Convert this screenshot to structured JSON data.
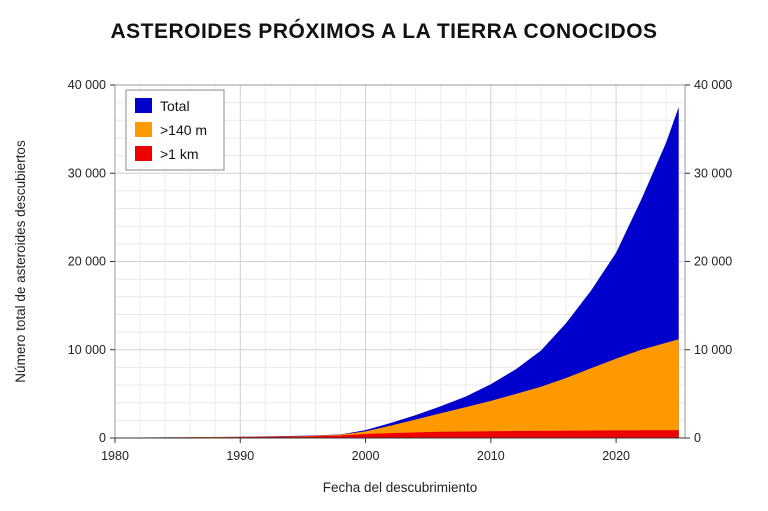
{
  "chart_data": {
    "type": "area",
    "title": "ASTEROIDES PRÓXIMOS A LA TIERRA CONOCIDOS",
    "xlabel": "Fecha del descubrimiento",
    "ylabel": "Número total de asteroides descubiertos",
    "xlim": [
      1980,
      2025.5
    ],
    "ylim": [
      0,
      40000
    ],
    "x_ticks": [
      1980,
      1990,
      2000,
      2010,
      2020
    ],
    "y_ticks": [
      {
        "value": 0,
        "label": "0"
      },
      {
        "value": 10000,
        "label": "10 000"
      },
      {
        "value": 20000,
        "label": "20 000"
      },
      {
        "value": 30000,
        "label": "30 000"
      },
      {
        "value": 40000,
        "label": "40 000"
      }
    ],
    "grid": true,
    "legend_position": "top-left",
    "x": [
      1982,
      1985,
      1990,
      1995,
      1998,
      2000,
      2002,
      2004,
      2006,
      2008,
      2010,
      2012,
      2014,
      2016,
      2018,
      2020,
      2022,
      2024,
      2025
    ],
    "series": [
      {
        "name": "Total",
        "color": "#0000cc",
        "values": [
          60,
          90,
          150,
          250,
          400,
          900,
          1700,
          2600,
          3600,
          4700,
          6100,
          7800,
          9900,
          13000,
          16700,
          21000,
          27000,
          33500,
          37500
        ]
      },
      {
        "name": ">140 m",
        "color": "#ff9900",
        "values": [
          50,
          80,
          130,
          220,
          360,
          750,
          1400,
          2100,
          2800,
          3500,
          4200,
          5000,
          5800,
          6800,
          7900,
          9000,
          10000,
          10800,
          11200
        ]
      },
      {
        "name": ">1 km",
        "color": "#ee0000",
        "values": [
          40,
          60,
          100,
          170,
          280,
          450,
          560,
          640,
          700,
          740,
          770,
          790,
          810,
          830,
          850,
          860,
          870,
          880,
          890
        ]
      }
    ]
  }
}
